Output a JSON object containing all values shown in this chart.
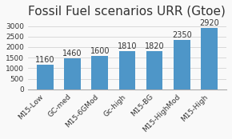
{
  "title": "Fossil Fuel scenarios URR (Gtoe)",
  "categories": [
    "M15-Low",
    "GC-med",
    "M15-6GMod",
    "Gc-high",
    "M15-BG",
    "M15-HighMod",
    "M15-High"
  ],
  "values": [
    1160,
    1460,
    1600,
    1810,
    1820,
    2350,
    2920
  ],
  "bar_color": "#4e96c8",
  "ylim": [
    0,
    3200
  ],
  "yticks": [
    0,
    500,
    1000,
    1500,
    2000,
    2500,
    3000
  ],
  "background_color": "#f9f9f9",
  "title_fontsize": 11,
  "label_fontsize": 7.5,
  "value_fontsize": 7,
  "tick_fontsize": 6.5
}
